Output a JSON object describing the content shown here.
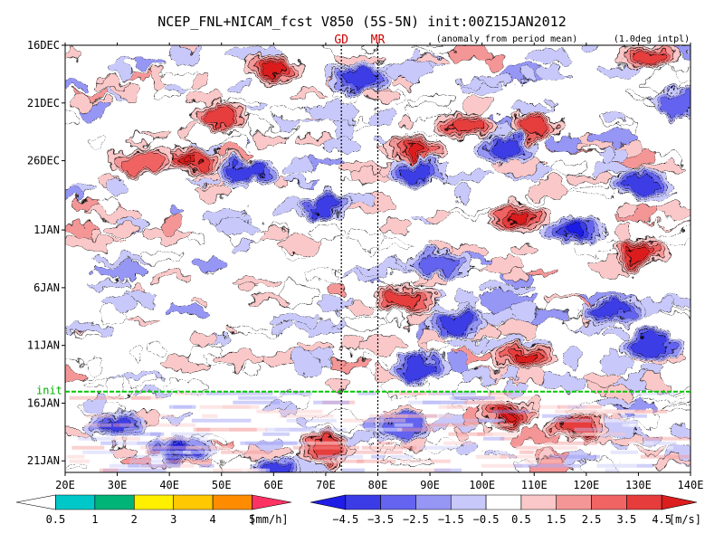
{
  "chart_data": {
    "type": "heatmap",
    "title": "NCEP_FNL+NICAM_fcst V850 (5S-5N) init:00Z15JAN2012",
    "note_left": "(anomaly from period mean)",
    "note_right": "(1.0deg intpl)",
    "x_ticks": [
      "20E",
      "30E",
      "40E",
      "50E",
      "60E",
      "70E",
      "80E",
      "90E",
      "100E",
      "110E",
      "120E",
      "130E",
      "140E"
    ],
    "x_range": [
      20,
      140
    ],
    "y_ticks": [
      "16DEC",
      "21DEC",
      "26DEC",
      "1JAN",
      "6JAN",
      "11JAN",
      "16JAN",
      "21JAN"
    ],
    "y_tick_days": [
      0,
      5,
      10,
      16,
      21,
      26,
      31,
      36
    ],
    "y_range_days": [
      0,
      37
    ],
    "init_label": "init",
    "init_day": 30,
    "markers": [
      {
        "label": "GD",
        "lon": 73
      },
      {
        "label": "MR",
        "lon": 80
      }
    ],
    "colorbar_rain": {
      "labels": [
        "0.5",
        "1",
        "2",
        "3",
        "4",
        "5"
      ],
      "unit": "[mm/h]",
      "colors": [
        "#ffffff",
        "#00c8c8",
        "#00b478",
        "#fff000",
        "#ffc800",
        "#ff8c00",
        "#ff3264"
      ]
    },
    "colorbar_wind": {
      "labels": [
        "−4.5",
        "−3.5",
        "−2.5",
        "−1.5",
        "−0.5",
        "0.5",
        "1.5",
        "2.5",
        "3.5",
        "4.5"
      ],
      "unit": "[m/s]",
      "colors": [
        "#1e1ee6",
        "#3c3ce6",
        "#6464f0",
        "#9696f5",
        "#c8c8fa",
        "#ffffff",
        "#fac8c8",
        "#f59696",
        "#f06464",
        "#e63c3c",
        "#dc1e1e"
      ]
    },
    "anomaly_features": [
      {
        "lon": 60,
        "day": 2,
        "v": 3.5
      },
      {
        "lon": 50,
        "day": 6,
        "v": 3.0
      },
      {
        "lon": 44,
        "day": 10,
        "v": 4.5
      },
      {
        "lon": 35,
        "day": 10,
        "v": 2.0
      },
      {
        "lon": 87,
        "day": 9,
        "v": 4.0
      },
      {
        "lon": 97,
        "day": 7,
        "v": 3.0
      },
      {
        "lon": 132,
        "day": 1,
        "v": 2.5
      },
      {
        "lon": 110,
        "day": 7,
        "v": 3.0
      },
      {
        "lon": 107,
        "day": 15,
        "v": 3.5
      },
      {
        "lon": 130,
        "day": 18,
        "v": 3.5
      },
      {
        "lon": 85,
        "day": 22,
        "v": 3.0
      },
      {
        "lon": 108,
        "day": 27,
        "v": 3.5
      },
      {
        "lon": 105,
        "day": 32,
        "v": 4.5
      },
      {
        "lon": 118,
        "day": 33,
        "v": 2.5
      },
      {
        "lon": 70,
        "day": 35,
        "v": 2.5
      },
      {
        "lon": 55,
        "day": 11,
        "v": -3.0
      },
      {
        "lon": 70,
        "day": 14,
        "v": -3.0
      },
      {
        "lon": 88,
        "day": 11,
        "v": -2.5
      },
      {
        "lon": 105,
        "day": 9,
        "v": -3.0
      },
      {
        "lon": 92,
        "day": 19,
        "v": -2.0
      },
      {
        "lon": 118,
        "day": 16,
        "v": -3.5
      },
      {
        "lon": 130,
        "day": 12,
        "v": -3.0
      },
      {
        "lon": 125,
        "day": 23,
        "v": -2.5
      },
      {
        "lon": 95,
        "day": 24,
        "v": -3.0
      },
      {
        "lon": 88,
        "day": 28,
        "v": -3.0
      },
      {
        "lon": 133,
        "day": 26,
        "v": -2.5
      },
      {
        "lon": 42,
        "day": 35,
        "v": -4.0
      },
      {
        "lon": 30,
        "day": 33,
        "v": -2.5
      },
      {
        "lon": 60,
        "day": 37,
        "v": -3.0
      },
      {
        "lon": 85,
        "day": 33,
        "v": -2.0
      },
      {
        "lon": 138,
        "day": 5,
        "v": -2.0
      },
      {
        "lon": 77,
        "day": 3,
        "v": -2.5
      }
    ]
  }
}
